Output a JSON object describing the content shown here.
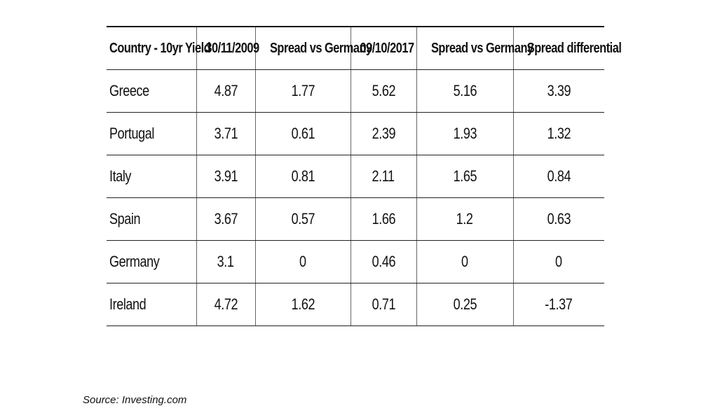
{
  "table": {
    "headers": [
      "Country - 10yr Yield",
      "30/11/2009",
      "Spread vs Germany",
      "09/10/2017",
      "Spread vs Germany",
      "Spread differential"
    ],
    "rows": [
      [
        "Greece",
        "4.87",
        "1.77",
        "5.62",
        "5.16",
        "3.39"
      ],
      [
        "Portugal",
        "3.71",
        "0.61",
        "2.39",
        "1.93",
        "1.32"
      ],
      [
        "Italy",
        "3.91",
        "0.81",
        "2.11",
        "1.65",
        "0.84"
      ],
      [
        "Spain",
        "3.67",
        "0.57",
        "1.66",
        "1.2",
        "0.63"
      ],
      [
        "Germany",
        "3.1",
        "0",
        "0.46",
        "0",
        "0"
      ],
      [
        "Ireland",
        "4.72",
        "1.62",
        "0.71",
        "0.25",
        "-1.37"
      ]
    ]
  },
  "source": "Source: Investing.com"
}
